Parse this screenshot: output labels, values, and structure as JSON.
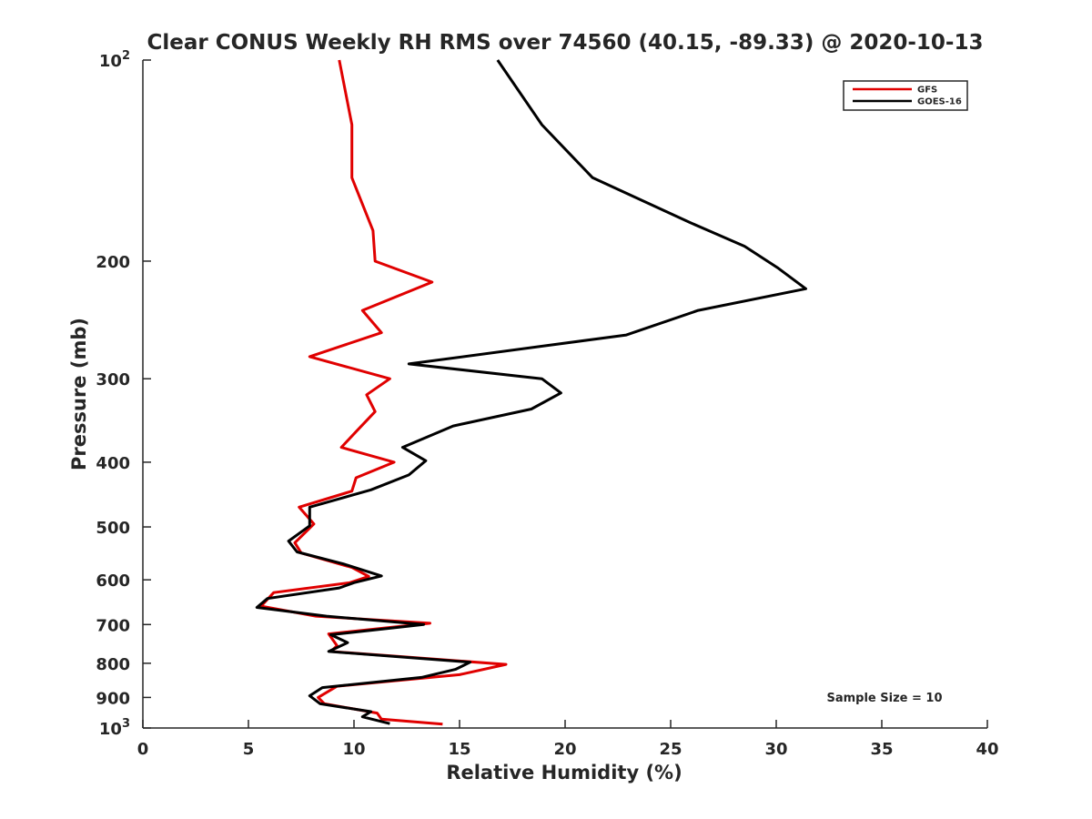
{
  "chart_data": {
    "type": "line",
    "title": "Clear CONUS Weekly RH RMS over 74560 (40.15, -89.33) @ 2020-10-13",
    "xlabel": "Relative Humidity (%)",
    "ylabel": "Pressure (mb)",
    "xlim": [
      0,
      40
    ],
    "ylim": [
      100,
      1000
    ],
    "y_scale": "log",
    "y_reversed": true,
    "x_ticks": [
      "0",
      "5",
      "10",
      "15",
      "20",
      "25",
      "30",
      "35",
      "40"
    ],
    "y_ticks": [
      {
        "value": 100,
        "base": "10",
        "exp": "2"
      },
      {
        "value": 200,
        "label": "200"
      },
      {
        "value": 300,
        "label": "300"
      },
      {
        "value": 400,
        "label": "400"
      },
      {
        "value": 500,
        "label": "500"
      },
      {
        "value": 600,
        "label": "600"
      },
      {
        "value": 700,
        "label": "700"
      },
      {
        "value": 800,
        "label": "800"
      },
      {
        "value": 900,
        "label": "900"
      },
      {
        "value": 1000,
        "base": "10",
        "exp": "3"
      }
    ],
    "grid": false,
    "legend_position": "top-right",
    "annotation": "Sample Size = 10",
    "series": [
      {
        "name": "GFS",
        "color": "#e00000",
        "points": [
          [
            9.3,
            100
          ],
          [
            9.9,
            125
          ],
          [
            9.9,
            150
          ],
          [
            10.9,
            180
          ],
          [
            11.0,
            200
          ],
          [
            13.7,
            215
          ],
          [
            10.4,
            237
          ],
          [
            11.3,
            256
          ],
          [
            7.9,
            278
          ],
          [
            11.7,
            300
          ],
          [
            10.6,
            317
          ],
          [
            11.0,
            336
          ],
          [
            10.1,
            360
          ],
          [
            9.4,
            380
          ],
          [
            11.9,
            400
          ],
          [
            10.1,
            422
          ],
          [
            9.9,
            442
          ],
          [
            7.4,
            467
          ],
          [
            8.1,
            495
          ],
          [
            7.2,
            528
          ],
          [
            7.5,
            547
          ],
          [
            9.9,
            575
          ],
          [
            10.7,
            593
          ],
          [
            9.8,
            606
          ],
          [
            6.2,
            627
          ],
          [
            5.6,
            657
          ],
          [
            8.2,
            680
          ],
          [
            13.6,
            697
          ],
          [
            8.8,
            723
          ],
          [
            9.2,
            753
          ],
          [
            8.9,
            768
          ],
          [
            17.2,
            803
          ],
          [
            15.0,
            832
          ],
          [
            9.2,
            866
          ],
          [
            8.3,
            900
          ],
          [
            8.6,
            920
          ],
          [
            11.1,
            950
          ],
          [
            11.3,
            970
          ],
          [
            14.2,
            987
          ]
        ]
      },
      {
        "name": "GOES-16",
        "color": "#000000",
        "points": [
          [
            16.8,
            100
          ],
          [
            18.9,
            125
          ],
          [
            21.3,
            150
          ],
          [
            25.9,
            175
          ],
          [
            28.5,
            190
          ],
          [
            30.1,
            205
          ],
          [
            31.4,
            220
          ],
          [
            26.3,
            237
          ],
          [
            22.9,
            258
          ],
          [
            12.6,
            285
          ],
          [
            18.9,
            300
          ],
          [
            19.8,
            315
          ],
          [
            18.4,
            333
          ],
          [
            14.7,
            353
          ],
          [
            12.3,
            380
          ],
          [
            13.4,
            398
          ],
          [
            12.6,
            418
          ],
          [
            10.8,
            440
          ],
          [
            7.9,
            467
          ],
          [
            7.9,
            498
          ],
          [
            6.9,
            525
          ],
          [
            7.3,
            545
          ],
          [
            9.5,
            568
          ],
          [
            11.3,
            592
          ],
          [
            10.0,
            606
          ],
          [
            9.3,
            617
          ],
          [
            5.9,
            640
          ],
          [
            5.4,
            660
          ],
          [
            8.7,
            680
          ],
          [
            13.3,
            700
          ],
          [
            8.9,
            725
          ],
          [
            9.7,
            745
          ],
          [
            8.8,
            768
          ],
          [
            15.5,
            797
          ],
          [
            14.8,
            817
          ],
          [
            13.2,
            840
          ],
          [
            8.5,
            870
          ],
          [
            7.9,
            895
          ],
          [
            8.4,
            920
          ],
          [
            10.8,
            945
          ],
          [
            10.4,
            962
          ],
          [
            11.7,
            985
          ]
        ]
      }
    ]
  }
}
